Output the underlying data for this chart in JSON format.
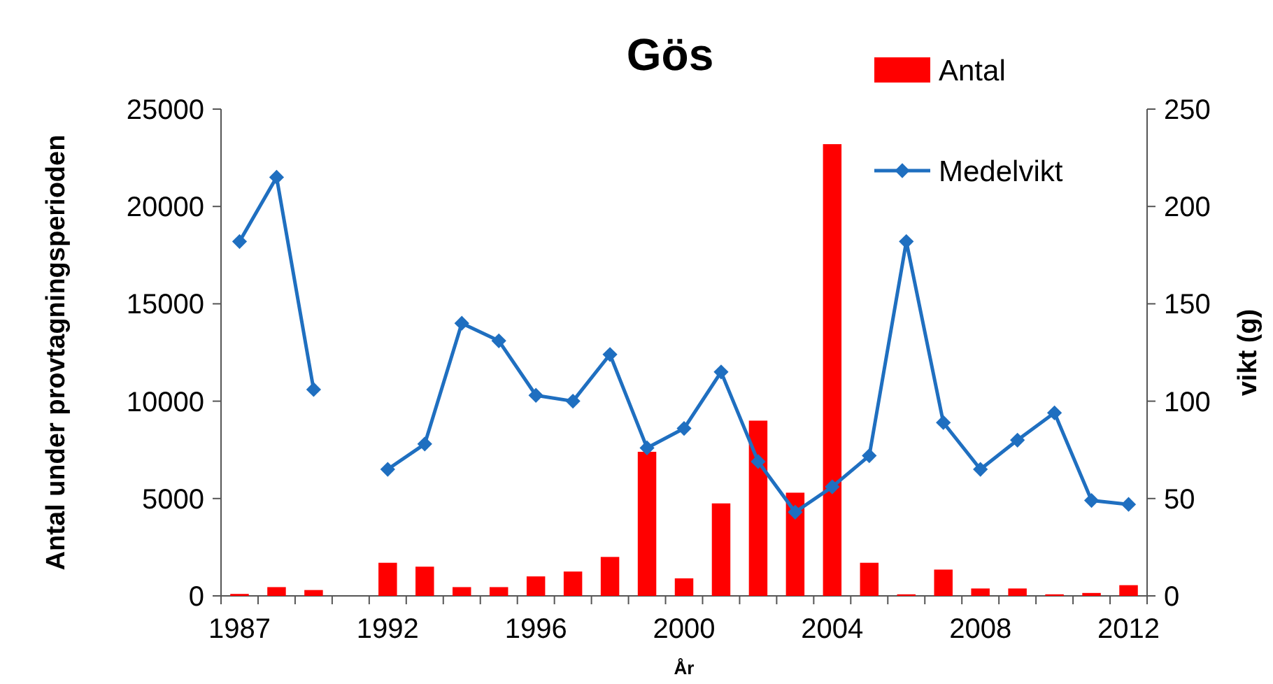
{
  "chart_data": {
    "type": "bar",
    "title": "Gös",
    "xlabel": "År",
    "ylabel": "Antal under provtagningsperioden",
    "y2label": "vikt (g)",
    "categories": [
      "1987",
      null,
      null,
      null,
      "1992",
      null,
      null,
      null,
      "1996",
      null,
      null,
      null,
      "2000",
      null,
      null,
      null,
      "2004",
      null,
      null,
      null,
      "2008",
      null,
      null,
      null,
      "2012"
    ],
    "series": [
      {
        "name": "Antal",
        "color": "#ff0000",
        "values": [
          100,
          450,
          300,
          null,
          1700,
          1500,
          450,
          450,
          1000,
          1250,
          2000,
          7400,
          900,
          4750,
          9000,
          5300,
          23200,
          1700,
          80,
          1350,
          380,
          380,
          80,
          150,
          550
        ]
      },
      {
        "name": "Medelvikt",
        "type": "line",
        "axis": "y2",
        "color": "#1f6fc0",
        "marker": "diamond",
        "values": [
          182,
          215,
          106,
          null,
          65,
          78,
          140,
          131,
          103,
          100,
          124,
          76,
          86,
          115,
          69,
          43,
          56,
          72,
          182,
          89,
          65,
          80,
          94,
          49,
          47
        ]
      }
    ],
    "ylim": [
      0,
      25000
    ],
    "yticks": [
      0,
      5000,
      10000,
      15000,
      20000,
      25000
    ],
    "y2lim": [
      0,
      250
    ],
    "y2ticks": [
      0,
      50,
      100,
      150,
      200,
      250
    ],
    "legend": "top right",
    "grid": false
  }
}
